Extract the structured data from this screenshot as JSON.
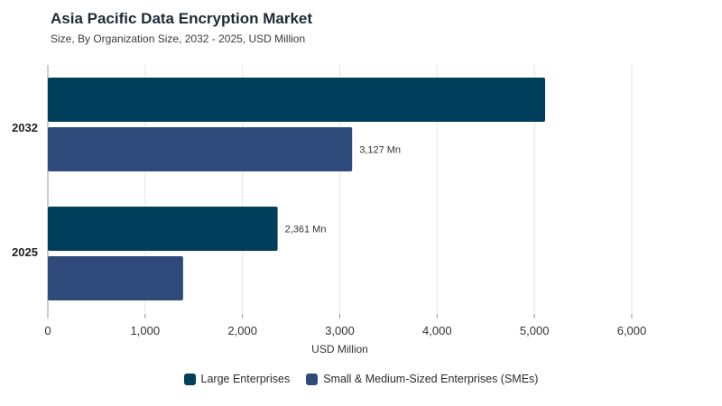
{
  "colors": {
    "large": "#003f5c",
    "sme": "#2f4b7c",
    "grid": "#e6e6e6",
    "axis": "#999999"
  },
  "chart_data": {
    "type": "bar",
    "orientation": "horizontal",
    "title": "Asia Pacific Data Encryption Market",
    "subtitle": "Size, By Organization Size, 2032 - 2025, USD Million",
    "xlabel": "USD Million",
    "ylabel": "",
    "categories": [
      "2032",
      "2025"
    ],
    "xlim": [
      0,
      6000
    ],
    "xticks": [
      0,
      1000,
      2000,
      3000,
      4000,
      5000,
      6000
    ],
    "xtick_labels": [
      "0",
      "1,000",
      "2,000",
      "3,000",
      "4,000",
      "5,000",
      "6,000"
    ],
    "grid": true,
    "legend_position": "bottom",
    "series": [
      {
        "name": "Large Enterprises",
        "values": [
          5110,
          2361
        ],
        "data_labels": [
          "",
          "2,361 Mn"
        ]
      },
      {
        "name": "Small & Medium-Sized Enterprises (SMEs)",
        "values": [
          3127,
          1390
        ],
        "data_labels": [
          "3,127 Mn",
          ""
        ]
      }
    ]
  }
}
